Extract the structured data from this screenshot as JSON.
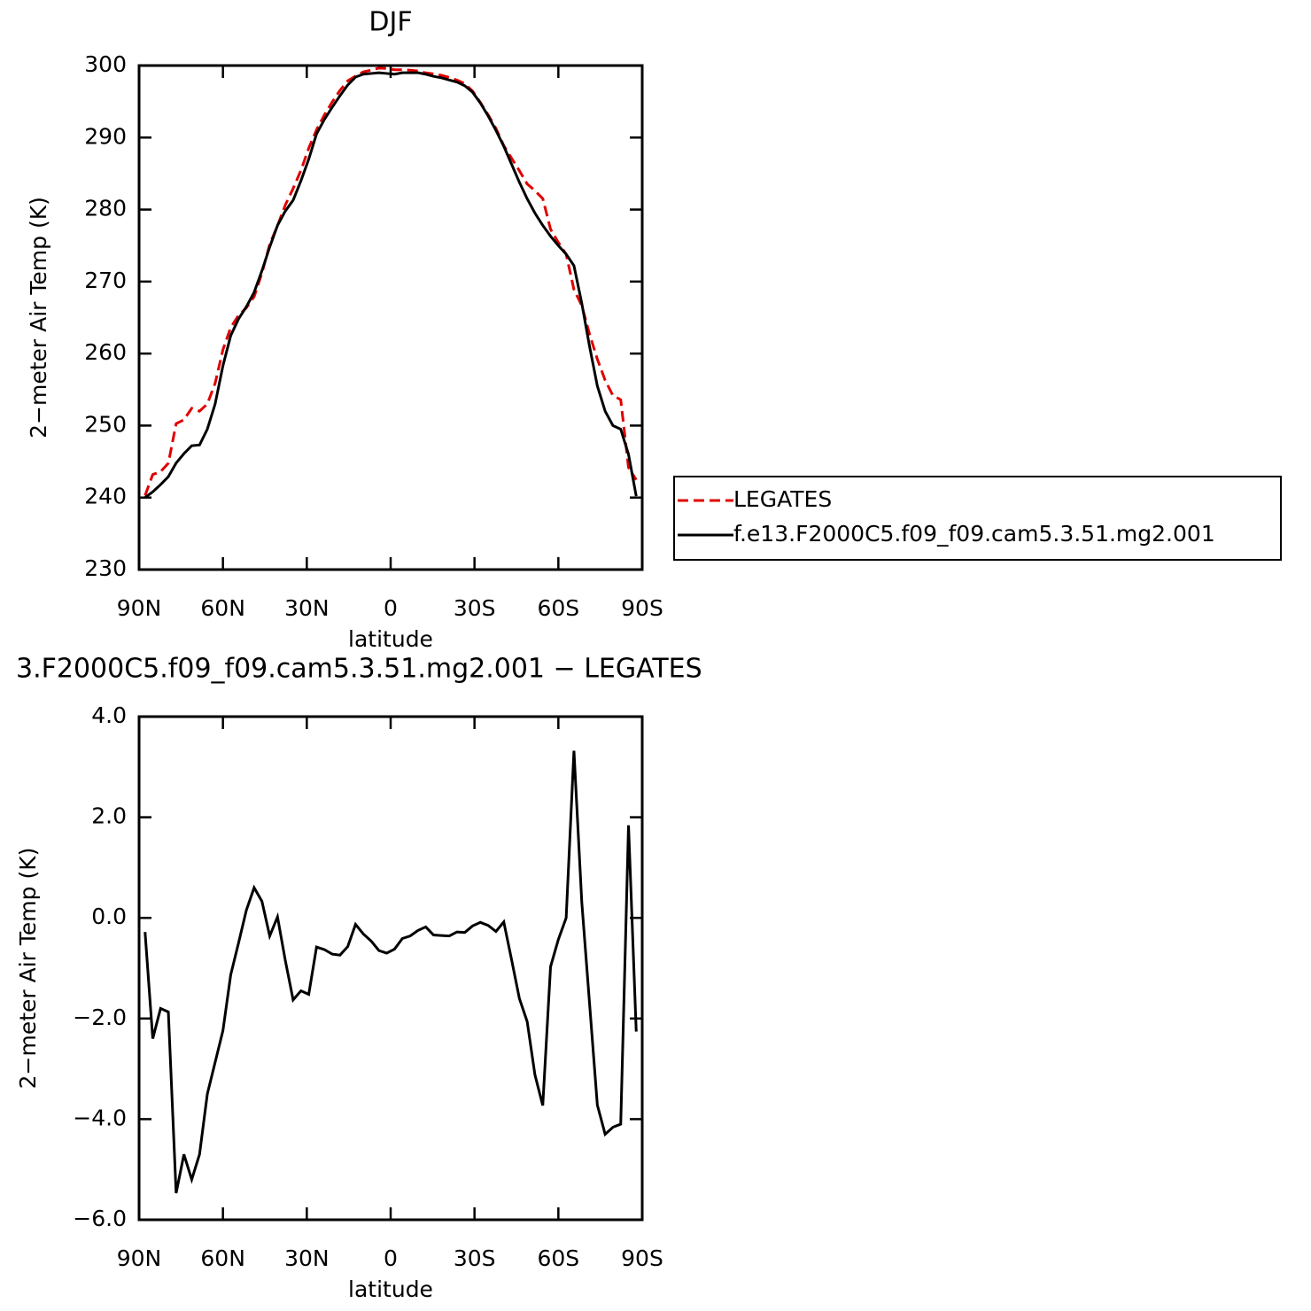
{
  "chart_data": [
    {
      "type": "line",
      "title": "DJF",
      "xlabel": "latitude",
      "ylabel": "2−meter Air Temp (K)",
      "x": [
        87.86,
        85.1,
        82.31,
        79.53,
        76.74,
        73.95,
        71.16,
        68.37,
        65.58,
        62.79,
        60.0,
        57.21,
        54.42,
        51.63,
        48.84,
        46.05,
        43.26,
        40.47,
        37.67,
        34.88,
        32.09,
        29.3,
        26.51,
        23.72,
        20.93,
        18.14,
        15.35,
        12.56,
        9.77,
        6.98,
        4.19,
        1.4,
        -1.4,
        -4.19,
        -6.98,
        -9.77,
        -12.56,
        -15.35,
        -18.14,
        -20.93,
        -23.72,
        -26.51,
        -29.3,
        -32.09,
        -34.88,
        -37.67,
        -40.47,
        -43.26,
        -46.05,
        -48.84,
        -51.63,
        -54.42,
        -57.21,
        -60.0,
        -62.79,
        -65.58,
        -68.37,
        -71.16,
        -73.95,
        -76.74,
        -79.53,
        -82.31,
        -85.1,
        -87.86
      ],
      "series": [
        {
          "name": "LEGATES",
          "color": "#e00000",
          "linestyle": "dashed",
          "values": [
            240.28,
            243.2,
            243.6,
            244.77,
            250.27,
            250.8,
            252.4,
            252.0,
            253.0,
            255.87,
            260.54,
            263.63,
            265.3,
            266.35,
            267.9,
            271.17,
            275.16,
            277.78,
            280.65,
            282.93,
            285.45,
            288.52,
            291.08,
            293.13,
            294.92,
            296.54,
            297.87,
            298.53,
            299.12,
            299.36,
            299.65,
            299.6,
            299.42,
            299.41,
            299.36,
            299.25,
            298.98,
            298.84,
            298.65,
            298.36,
            297.98,
            297.49,
            296.46,
            294.89,
            293.15,
            291.27,
            288.88,
            287.13,
            285.4,
            283.56,
            282.62,
            281.53,
            277.27,
            275.43,
            273.8,
            268.88,
            266.68,
            262.7,
            259.22,
            256.3,
            254.16,
            253.6,
            244.16,
            242.46
          ]
        },
        {
          "name": "f.e13.F2000C5.f09_f09.cam5.3.51.mg2.001",
          "color": "#000000",
          "linestyle": "solid",
          "values": [
            240.0,
            240.8,
            241.8,
            242.9,
            244.8,
            246.1,
            247.2,
            247.3,
            249.5,
            253.0,
            258.3,
            262.5,
            264.8,
            266.5,
            268.5,
            271.5,
            274.8,
            277.8,
            279.8,
            281.3,
            284.0,
            287.0,
            290.5,
            292.5,
            294.2,
            295.8,
            297.3,
            298.4,
            298.8,
            298.9,
            299.0,
            298.9,
            298.8,
            299.0,
            299.0,
            299.0,
            298.8,
            298.5,
            298.3,
            298.0,
            297.7,
            297.2,
            296.3,
            294.8,
            293.0,
            291.0,
            288.8,
            286.3,
            283.8,
            281.5,
            279.5,
            277.8,
            276.3,
            275.0,
            273.8,
            272.2,
            267.0,
            261.0,
            255.5,
            252.0,
            250.0,
            249.5,
            246.0,
            240.2
          ]
        }
      ],
      "xlim": [
        90,
        -90
      ],
      "xticks": [
        {
          "value": 90,
          "label": "90N"
        },
        {
          "value": 60,
          "label": "60N"
        },
        {
          "value": 30,
          "label": "30N"
        },
        0,
        {
          "value": -30,
          "label": "30S"
        },
        {
          "value": -60,
          "label": "60S"
        },
        {
          "value": -90,
          "label": "90S"
        }
      ],
      "ylim": [
        230,
        300
      ],
      "yticks": [
        230,
        240,
        250,
        260,
        270,
        280,
        290,
        300
      ],
      "legend": "right"
    },
    {
      "type": "line",
      "title": "3.F2000C5.f09_f09.cam5.3.51.mg2.001  −  LEGATES",
      "xlabel": "latitude",
      "ylabel": "2−meter Air Temp (K)",
      "x": [
        87.86,
        85.1,
        82.31,
        79.53,
        76.74,
        73.95,
        71.16,
        68.37,
        65.58,
        62.79,
        60.0,
        57.21,
        54.42,
        51.63,
        48.84,
        46.05,
        43.26,
        40.47,
        37.67,
        34.88,
        32.09,
        29.3,
        26.51,
        23.72,
        20.93,
        18.14,
        15.35,
        12.56,
        9.77,
        6.98,
        4.19,
        1.4,
        -1.4,
        -4.19,
        -6.98,
        -9.77,
        -12.56,
        -15.35,
        -18.14,
        -20.93,
        -23.72,
        -26.51,
        -29.3,
        -32.09,
        -34.88,
        -37.67,
        -40.47,
        -43.26,
        -46.05,
        -48.84,
        -51.63,
        -54.42,
        -57.21,
        -60.0,
        -62.79,
        -65.58,
        -68.37,
        -71.16,
        -73.95,
        -76.74,
        -79.53,
        -82.31,
        -85.1,
        -87.86
      ],
      "series": [
        {
          "color": "#000000",
          "linestyle": "solid",
          "values": [
            -0.28,
            -2.4,
            -1.8,
            -1.87,
            -5.47,
            -4.7,
            -5.2,
            -4.7,
            -3.5,
            -2.87,
            -2.24,
            -1.13,
            -0.5,
            0.15,
            0.6,
            0.33,
            -0.36,
            0.02,
            -0.85,
            -1.63,
            -1.45,
            -1.52,
            -0.58,
            -0.63,
            -0.72,
            -0.74,
            -0.57,
            -0.13,
            -0.32,
            -0.46,
            -0.65,
            -0.7,
            -0.62,
            -0.41,
            -0.36,
            -0.25,
            -0.18,
            -0.34,
            -0.35,
            -0.36,
            -0.28,
            -0.29,
            -0.16,
            -0.09,
            -0.15,
            -0.27,
            -0.08,
            -0.83,
            -1.6,
            -2.06,
            -3.12,
            -3.73,
            -0.97,
            -0.43,
            0.0,
            3.32,
            0.32,
            -1.7,
            -3.72,
            -4.3,
            -4.16,
            -4.1,
            1.84,
            -2.26
          ]
        }
      ],
      "xlim": [
        90,
        -90
      ],
      "xticks": [
        {
          "value": 90,
          "label": "90N"
        },
        {
          "value": 60,
          "label": "60N"
        },
        {
          "value": 30,
          "label": "30N"
        },
        0,
        {
          "value": -30,
          "label": "30S"
        },
        {
          "value": -60,
          "label": "60S"
        },
        {
          "value": -90,
          "label": "90S"
        }
      ],
      "ylim": [
        -6,
        4
      ],
      "yticks": [
        {
          "value": -6,
          "label": "−6.0"
        },
        {
          "value": -4,
          "label": "−4.0"
        },
        {
          "value": -2,
          "label": "−2.0"
        },
        {
          "value": 0,
          "label": "0.0"
        },
        {
          "value": 2,
          "label": "2.0"
        },
        {
          "value": 4,
          "label": "4.0"
        }
      ]
    }
  ]
}
